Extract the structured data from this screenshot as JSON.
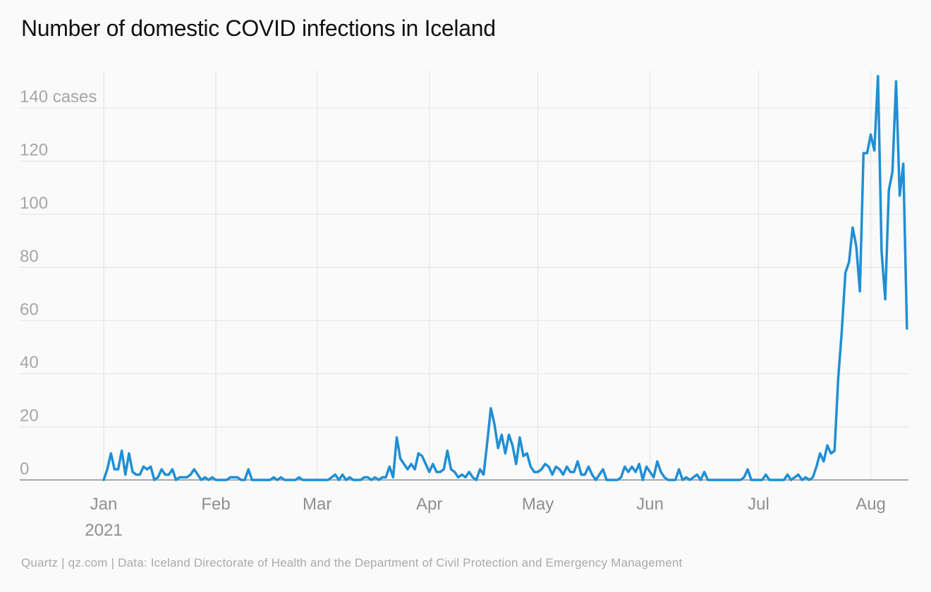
{
  "chart_data": {
    "type": "line",
    "title": "Number of domestic COVID infections in Iceland",
    "source": "Quartz | qz.com | Data: Iceland Directorate of Health and the Department of Civil Protection and Emergency Management",
    "ylabel_unit": "cases",
    "ylim": [
      0,
      150
    ],
    "yticks": [
      0,
      20,
      40,
      60,
      80,
      100,
      120,
      140
    ],
    "ytick_labels": [
      "0",
      "20",
      "40",
      "60",
      "80",
      "100",
      "120",
      "140 cases"
    ],
    "xlim": [
      "2021-01-01",
      "2021-08-07"
    ],
    "xticks": [
      {
        "date": "2021-01-01",
        "label": "Jan",
        "sublabel": "2021"
      },
      {
        "date": "2021-02-01",
        "label": "Feb"
      },
      {
        "date": "2021-03-01",
        "label": "Mar"
      },
      {
        "date": "2021-04-01",
        "label": "Apr"
      },
      {
        "date": "2021-05-01",
        "label": "May"
      },
      {
        "date": "2021-06-01",
        "label": "Jun"
      },
      {
        "date": "2021-07-01",
        "label": "Jul"
      },
      {
        "date": "2021-08-01",
        "label": "Aug"
      }
    ],
    "grid": true,
    "line_color": "#1f8fd4",
    "series": [
      {
        "name": "",
        "start_date": "2021-01-01",
        "interval": "day",
        "values": [
          0,
          4,
          10,
          4,
          4,
          11,
          2,
          10,
          3,
          2,
          2,
          5,
          4,
          5,
          0,
          1,
          4,
          2,
          2,
          4,
          0,
          1,
          1,
          1,
          2,
          4,
          2,
          0,
          1,
          0,
          1,
          0,
          0,
          0,
          0,
          1,
          1,
          1,
          0,
          0,
          4,
          0,
          0,
          0,
          0,
          0,
          0,
          1,
          0,
          1,
          0,
          0,
          0,
          0,
          1,
          0,
          0,
          0,
          0,
          0,
          0,
          0,
          0,
          1,
          2,
          0,
          2,
          0,
          1,
          0,
          0,
          0,
          1,
          1,
          0,
          1,
          0,
          1,
          1,
          5,
          1,
          16,
          8,
          6,
          4,
          6,
          4,
          10,
          9,
          6,
          3,
          6,
          3,
          3,
          4,
          11,
          4,
          3,
          1,
          2,
          1,
          3,
          1,
          0,
          4,
          2,
          14,
          27,
          21,
          12,
          17,
          10,
          17,
          13,
          6,
          16,
          9,
          10,
          5,
          3,
          3,
          4,
          6,
          5,
          2,
          5,
          4,
          2,
          5,
          3,
          3,
          7,
          2,
          2,
          5,
          2,
          0,
          2,
          4,
          0,
          0,
          0,
          0,
          1,
          5,
          3,
          5,
          3,
          6,
          0,
          5,
          3,
          1,
          7,
          3,
          1,
          0,
          0,
          0,
          4,
          0,
          1,
          0,
          1,
          2,
          0,
          3,
          0,
          0,
          0,
          0,
          0,
          0,
          0,
          0,
          0,
          0,
          1,
          4,
          0,
          0,
          0,
          0,
          2,
          0,
          0,
          0,
          0,
          0,
          2,
          0,
          1,
          2,
          0,
          1,
          0,
          1,
          5,
          10,
          7,
          13,
          10,
          11,
          38,
          56,
          78,
          82,
          95,
          88,
          71,
          123,
          123,
          130,
          124,
          152,
          86,
          68,
          109,
          116,
          150,
          107,
          119,
          57
        ]
      }
    ]
  }
}
